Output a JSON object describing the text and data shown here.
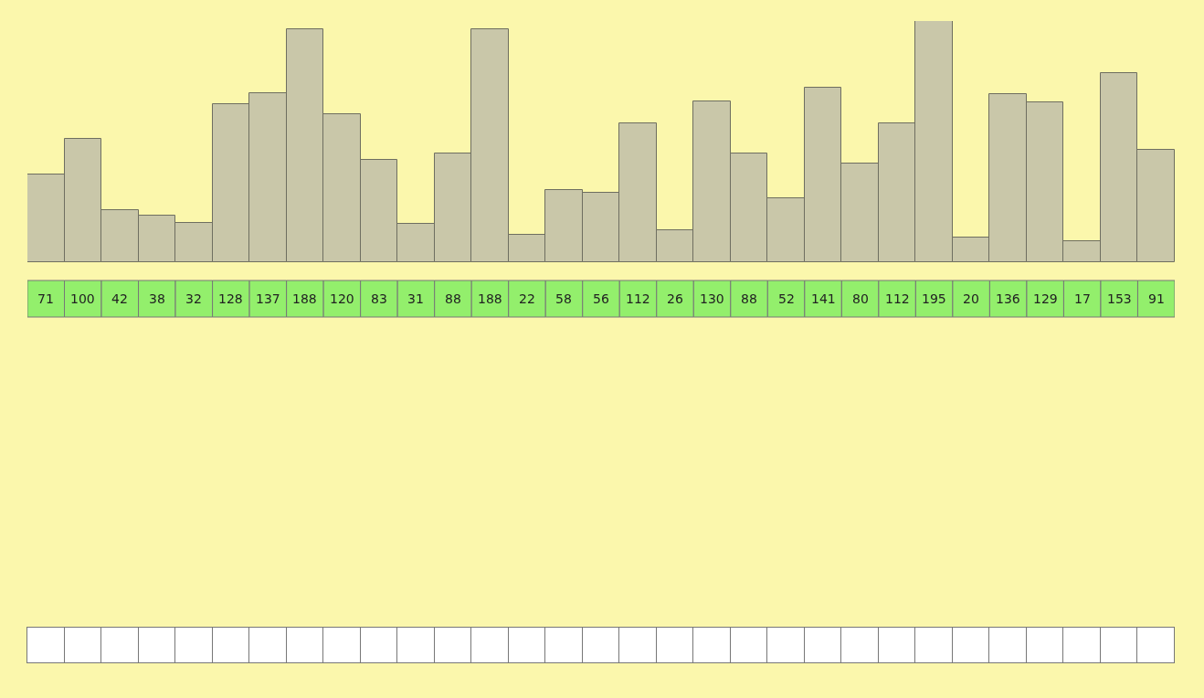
{
  "chart_data": {
    "type": "bar",
    "categories": [
      null,
      null,
      null,
      null,
      null,
      null,
      null,
      null,
      null,
      null,
      null,
      null,
      null,
      null,
      null,
      null,
      null,
      null,
      null,
      null,
      null,
      null,
      null,
      null,
      null,
      null,
      null,
      null,
      null,
      null,
      null
    ],
    "values": [
      71,
      100,
      42,
      38,
      32,
      128,
      137,
      188,
      120,
      83,
      31,
      88,
      188,
      22,
      58,
      56,
      112,
      26,
      130,
      88,
      52,
      141,
      80,
      112,
      195,
      20,
      136,
      129,
      17,
      153,
      91
    ],
    "color": "#c9c7a9",
    "data_labels": true,
    "grid": false,
    "legend": false
  }
}
